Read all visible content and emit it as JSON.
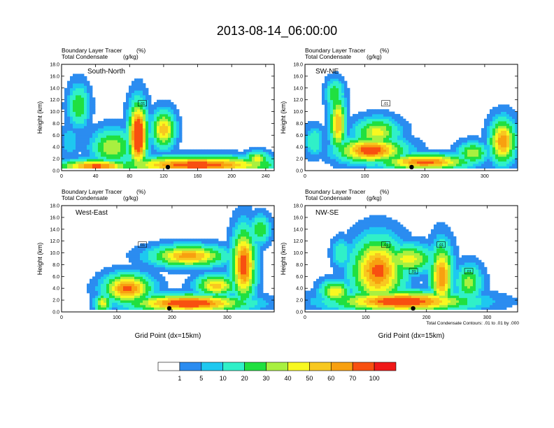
{
  "title": "2013-08-14_06:00:00",
  "chart_data": [
    {
      "type": "heatmap",
      "panel_label": "South-North",
      "subtitle_line1": "Boundary Layer Tracer",
      "subtitle_unit1": "(%)",
      "subtitle_line2": "Total Condensate",
      "subtitle_unit2": "(g/kg)",
      "ylabel": "Height (km)",
      "xlabel": "",
      "xlim": [
        0,
        250
      ],
      "ylim": [
        0,
        18
      ],
      "xticks": [
        "0",
        "40",
        "80",
        "120",
        "160",
        "200",
        "240"
      ],
      "xtick_values": [
        0,
        40,
        80,
        120,
        160,
        200,
        240
      ],
      "yticks": [
        "0.0",
        "2.0",
        "4.0",
        "6.0",
        "8.0",
        "10.0",
        "12.0",
        "14.0",
        "16.0",
        "18.0"
      ],
      "contour_labels": [
        ".01"
      ],
      "marker_x": 125,
      "blobs": [
        {
          "x": 160,
          "y": 1.0,
          "w": 150,
          "h": 2.4,
          "v": 80
        },
        {
          "x": 40,
          "y": 0.8,
          "w": 70,
          "h": 1.8,
          "v": 75
        },
        {
          "x": 90,
          "y": 6,
          "w": 18,
          "h": 9,
          "v": 100
        },
        {
          "x": 120,
          "y": 7,
          "w": 22,
          "h": 5,
          "v": 60
        },
        {
          "x": 20,
          "y": 11,
          "w": 20,
          "h": 6,
          "v": 30
        },
        {
          "x": 60,
          "y": 4,
          "w": 40,
          "h": 5,
          "v": 40
        },
        {
          "x": 230,
          "y": 2,
          "w": 25,
          "h": 2,
          "v": 45
        },
        {
          "x": 10,
          "y": 5,
          "w": 18,
          "h": 4,
          "v": 10
        }
      ]
    },
    {
      "type": "heatmap",
      "panel_label": "SW-NE",
      "subtitle_line1": "Boundary Layer Tracer",
      "subtitle_unit1": "(%)",
      "subtitle_line2": "Total Condensate",
      "subtitle_unit2": "(g/kg)",
      "ylabel": "Height (km)",
      "xlabel": "",
      "xlim": [
        0,
        355
      ],
      "ylim": [
        0,
        18
      ],
      "xticks": [
        "0",
        "100",
        "200",
        "300"
      ],
      "xtick_values": [
        0,
        100,
        200,
        300
      ],
      "yticks": [
        "0.0",
        "2.0",
        "4.0",
        "6.0",
        "8.0",
        "10.0",
        "12.0",
        "14.0",
        "16.0",
        "18.0"
      ],
      "contour_labels": [
        ".01"
      ],
      "marker_x": 178,
      "blobs": [
        {
          "x": 110,
          "y": 3.5,
          "w": 90,
          "h": 3.5,
          "v": 80
        },
        {
          "x": 200,
          "y": 1.5,
          "w": 120,
          "h": 2.2,
          "v": 75
        },
        {
          "x": 55,
          "y": 8,
          "w": 22,
          "h": 8,
          "v": 60
        },
        {
          "x": 120,
          "y": 6.5,
          "w": 60,
          "h": 4,
          "v": 45
        },
        {
          "x": 330,
          "y": 5,
          "w": 35,
          "h": 6,
          "v": 70
        },
        {
          "x": 50,
          "y": 13,
          "w": 25,
          "h": 4,
          "v": 30
        },
        {
          "x": 280,
          "y": 3,
          "w": 40,
          "h": 3,
          "v": 40
        },
        {
          "x": 15,
          "y": 5,
          "w": 25,
          "h": 4,
          "v": 20
        }
      ]
    },
    {
      "type": "heatmap",
      "panel_label": "West-East",
      "subtitle_line1": "Boundary Layer Tracer",
      "subtitle_unit1": "(%)",
      "subtitle_line2": "Total Condensate",
      "subtitle_unit2": "(g/kg)",
      "ylabel": "Height (km)",
      "xlabel": "Grid Point (dx=15km)",
      "xlim": [
        0,
        385
      ],
      "ylim": [
        0,
        18
      ],
      "xticks": [
        "0",
        "100",
        "200",
        "300"
      ],
      "xtick_values": [
        0,
        100,
        200,
        300
      ],
      "yticks": [
        "0.0",
        "2.0",
        "4.0",
        "6.0",
        "8.0",
        "10.0",
        "12.0",
        "14.0",
        "16.0",
        "18.0"
      ],
      "contour_labels": [
        ".01"
      ],
      "marker_x": 195,
      "blobs": [
        {
          "x": 230,
          "y": 1.5,
          "w": 170,
          "h": 2.5,
          "v": 85
        },
        {
          "x": 120,
          "y": 4,
          "w": 70,
          "h": 4,
          "v": 75
        },
        {
          "x": 230,
          "y": 9.5,
          "w": 110,
          "h": 3,
          "v": 65
        },
        {
          "x": 330,
          "y": 8,
          "w": 35,
          "h": 10,
          "v": 80
        },
        {
          "x": 280,
          "y": 4.5,
          "w": 60,
          "h": 3,
          "v": 55
        },
        {
          "x": 75,
          "y": 1.5,
          "w": 25,
          "h": 2.5,
          "v": 45
        },
        {
          "x": 360,
          "y": 14,
          "w": 30,
          "h": 4,
          "v": 30
        }
      ]
    },
    {
      "type": "heatmap",
      "panel_label": "NW-SE",
      "subtitle_line1": "Boundary Layer Tracer",
      "subtitle_unit1": "(%)",
      "subtitle_line2": "Total Condensate",
      "subtitle_unit2": "(g/kg)",
      "ylabel": "Height (km)",
      "xlabel": "Grid Point (dx=15km)",
      "xlim": [
        0,
        350
      ],
      "ylim": [
        0,
        18
      ],
      "xticks": [
        "0",
        "100",
        "200",
        "300"
      ],
      "xtick_values": [
        0,
        100,
        200,
        300
      ],
      "yticks": [
        "0.0",
        "2.0",
        "4.0",
        "6.0",
        "8.0",
        "10.0",
        "12.0",
        "14.0",
        "16.0",
        "18.0"
      ],
      "contour_labels": [
        ".01",
        ".01",
        ".01",
        ".01"
      ],
      "marker_x": 178,
      "footnote": "Total Condensate Contours: .01 to .01 by .000",
      "blobs": [
        {
          "x": 160,
          "y": 1.8,
          "w": 180,
          "h": 2.8,
          "v": 85
        },
        {
          "x": 120,
          "y": 7,
          "w": 70,
          "h": 9,
          "v": 75
        },
        {
          "x": 225,
          "y": 6,
          "w": 30,
          "h": 9,
          "v": 70
        },
        {
          "x": 170,
          "y": 9,
          "w": 70,
          "h": 4,
          "v": 45
        },
        {
          "x": 50,
          "y": 3.5,
          "w": 40,
          "h": 3,
          "v": 50
        },
        {
          "x": 270,
          "y": 5,
          "w": 35,
          "h": 5,
          "v": 35
        },
        {
          "x": 60,
          "y": 10,
          "w": 25,
          "h": 4,
          "v": 20
        }
      ]
    }
  ],
  "colorbar": {
    "colors": [
      "#ffffff",
      "#2b8cf0",
      "#1ec8f0",
      "#30f0c8",
      "#20e040",
      "#a8f040",
      "#f8f820",
      "#f8c820",
      "#f8a010",
      "#f85010",
      "#f01818"
    ],
    "labels": [
      "1",
      "5",
      "10",
      "20",
      "30",
      "40",
      "50",
      "60",
      "70",
      "100"
    ]
  }
}
